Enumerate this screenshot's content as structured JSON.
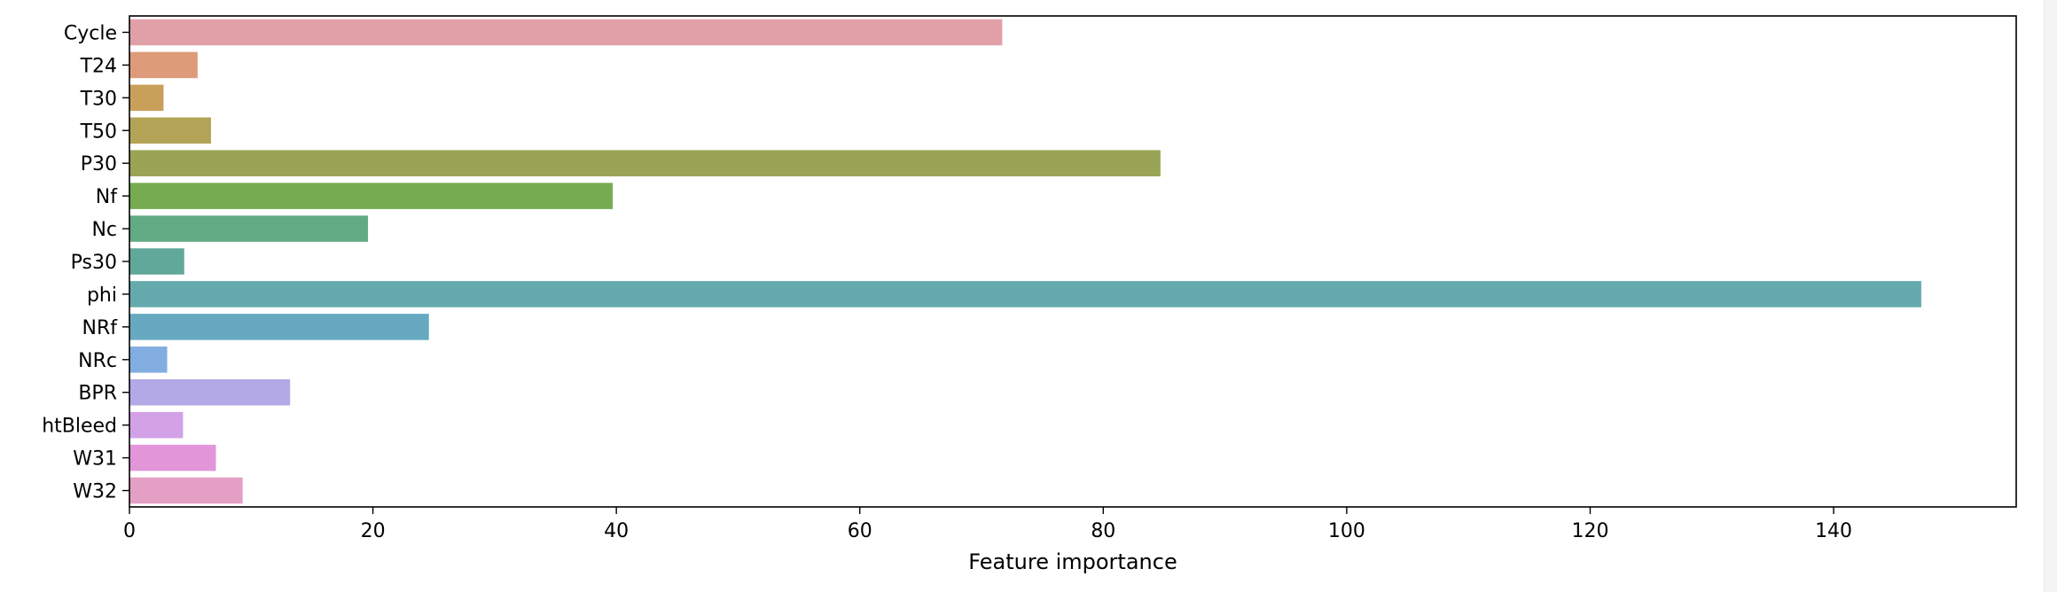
{
  "chart_data": {
    "type": "bar",
    "orientation": "horizontal",
    "title": "",
    "xlabel": "Feature importance",
    "ylabel": "",
    "xlim": [
      0,
      155
    ],
    "xticks": [
      0,
      20,
      40,
      60,
      80,
      100,
      120,
      140
    ],
    "grid": false,
    "categories": [
      "Cycle",
      "T24",
      "T30",
      "T50",
      "P30",
      "Nf",
      "Nc",
      "Ps30",
      "phi",
      "NRf",
      "NRc",
      "BPR",
      "htBleed",
      "W31",
      "W32"
    ],
    "values": [
      71.7,
      5.6,
      2.8,
      6.7,
      84.7,
      39.7,
      19.6,
      4.5,
      147.2,
      24.6,
      3.1,
      13.2,
      4.4,
      7.1,
      9.3
    ],
    "colors": [
      "#e1a0a8",
      "#de9b7a",
      "#c9a05a",
      "#b2a356",
      "#9aa455",
      "#76ab52",
      "#62aa84",
      "#60a89a",
      "#64aaad",
      "#66a9c1",
      "#82ade0",
      "#b3a9e6",
      "#d2a1e6",
      "#e295d8",
      "#e39fc4"
    ]
  }
}
